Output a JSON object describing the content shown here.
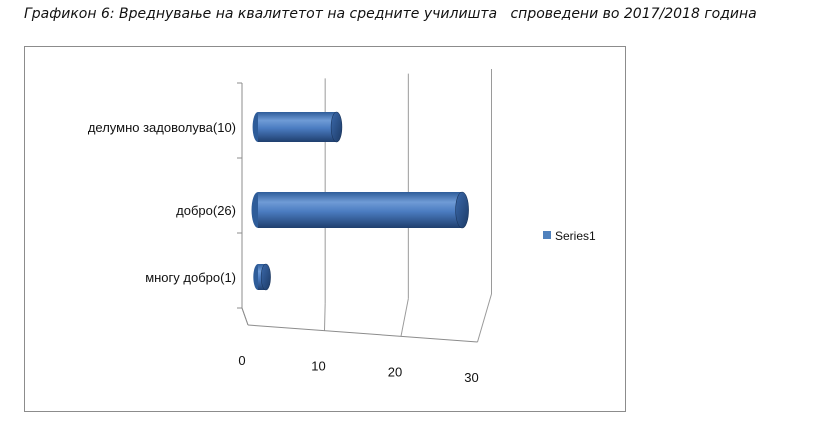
{
  "page": {
    "title": "Графикон 6: Вреднување на квалитетот на средните училишта   спроведени во 2017/2018 година"
  },
  "chart_data": {
    "type": "bar",
    "orientation": "horizontal",
    "style": "3d-cylinder",
    "title": "",
    "xlabel": "",
    "ylabel": "",
    "categories": [
      "делумно задоволува(10)",
      "добро(26)",
      "многу добро(1)"
    ],
    "series": [
      {
        "name": "Series1",
        "values": [
          10,
          26,
          1
        ],
        "color": "#4f81bd"
      }
    ],
    "xlim": [
      0,
      30
    ],
    "x_ticks": [
      0,
      10,
      20,
      30
    ],
    "grid": true,
    "legend": "right"
  }
}
